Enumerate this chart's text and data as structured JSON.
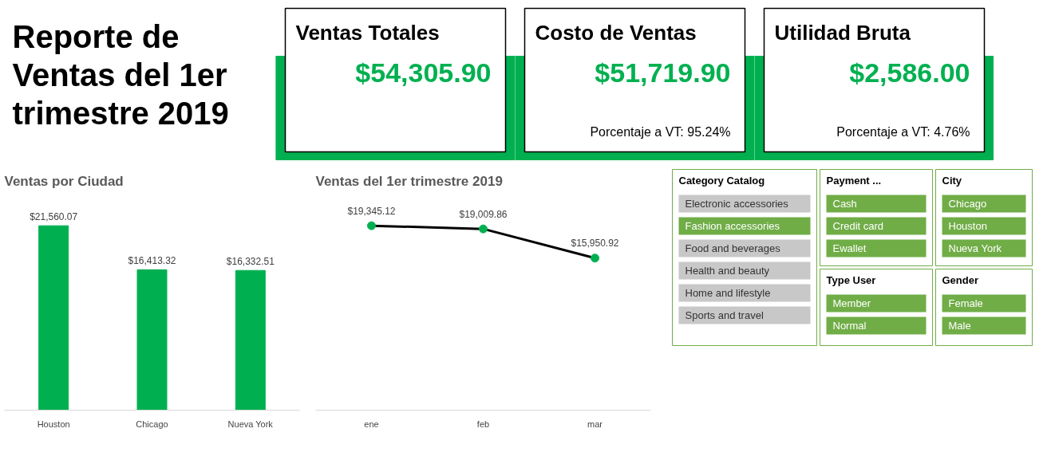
{
  "chart_data": [
    {
      "type": "other",
      "title": "Reporte de Ventas del 1er trimestre 2019"
    },
    {
      "type": "other",
      "title": "Ventas Totales",
      "color": "#00b050",
      "annotations": [
        "$54,305.90"
      ]
    },
    {
      "type": "other",
      "title": "Costo de Ventas",
      "color": "#00b050",
      "annotations": [
        "$51,719.90",
        "Porcentaje a VT: 95.24%"
      ]
    },
    {
      "type": "other",
      "title": "Utilidad Bruta",
      "color": "#00b050",
      "annotations": [
        "$2,586.00",
        "Porcentaje a VT: 4.76%"
      ]
    },
    {
      "type": "bar",
      "title": "Ventas por Ciudad",
      "categories": [
        "Houston",
        "Chicago",
        "Nueva York"
      ],
      "values": [
        21560.07,
        16413.32,
        16332.51
      ],
      "value_labels": [
        "$21,560.07",
        "$16,413.32",
        "$16,332.51"
      ],
      "color": "#00b050",
      "grid": false
    },
    {
      "type": "line",
      "title": "Ventas del 1er trimestre 2019",
      "categories": [
        "ene",
        "feb",
        "mar"
      ],
      "values": [
        19345.12,
        19009.86,
        15950.92
      ],
      "value_labels": [
        "$19,345.12",
        "$19,009.86",
        "$15,950.92"
      ],
      "color": "#000000",
      "colors": [
        "#00b050",
        "#00b050",
        "#00b050"
      ],
      "marker": "circle",
      "grid": false
    },
    {
      "type": "other",
      "title": "Category Catalog",
      "annotations": [
        "Electronic accessories",
        "Fashion accessories",
        "Food and beverages",
        "Health and beauty",
        "Home and lifestyle",
        "Sports and travel"
      ],
      "colors": [
        "#c8c8c8",
        "#70ad47",
        "#c8c8c8",
        "#c8c8c8",
        "#c8c8c8",
        "#c8c8c8"
      ]
    },
    {
      "type": "other",
      "title": "Payment ...",
      "annotations": [
        "Cash",
        "Credit card",
        "Ewallet"
      ],
      "colors": [
        "#70ad47",
        "#70ad47",
        "#70ad47"
      ]
    },
    {
      "type": "other",
      "title": "City",
      "annotations": [
        "Chicago",
        "Houston",
        "Nueva York"
      ],
      "colors": [
        "#70ad47",
        "#70ad47",
        "#70ad47"
      ]
    },
    {
      "type": "other",
      "title": "Type User",
      "annotations": [
        "Member",
        "Normal"
      ],
      "colors": [
        "#70ad47",
        "#70ad47"
      ]
    },
    {
      "type": "other",
      "title": "Gender",
      "annotations": [
        "Female",
        "Male"
      ],
      "colors": [
        "#70ad47",
        "#70ad47"
      ]
    }
  ]
}
